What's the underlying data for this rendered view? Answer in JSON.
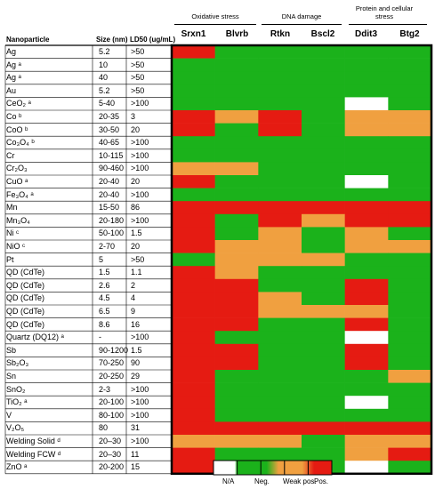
{
  "chart_data": {
    "type": "heatmap",
    "column_groups": [
      {
        "label": "Oxidative stress"
      },
      {
        "label": "DNA damage"
      },
      {
        "label": "Protein and cellular stress"
      }
    ],
    "columns": [
      "Srxn1",
      "Blvrb",
      "Rtkn",
      "Bscl2",
      "Ddit3",
      "Btg2"
    ],
    "table_headers": {
      "nanoparticle": "Nanoparticle",
      "size": "Size (nm)",
      "ld50": "LD50 (ug/mL)"
    },
    "rows": [
      {
        "name": "Ag",
        "size": "5.2",
        "ld50": ">50"
      },
      {
        "name": "Ag ᵃ",
        "size": "10",
        "ld50": ">50"
      },
      {
        "name": "Ag ᵃ",
        "size": "40",
        "ld50": ">50"
      },
      {
        "name": "Au",
        "size": "5.2",
        "ld50": ">50"
      },
      {
        "name": "CeO₂ ᵃ",
        "size": "5-40",
        "ld50": ">100"
      },
      {
        "name": "Co ᵇ",
        "size": "20-35",
        "ld50": "3"
      },
      {
        "name": "CoO ᵇ",
        "size": "30-50",
        "ld50": "20"
      },
      {
        "name": "Co₃O₄ ᵇ",
        "size": "40-65",
        "ld50": ">100"
      },
      {
        "name": "Cr",
        "size": "10-115",
        "ld50": ">100"
      },
      {
        "name": "Cr₂O₃",
        "size": "90-460",
        "ld50": ">100"
      },
      {
        "name": "CuO ᵃ",
        "size": "20-40",
        "ld50": "20"
      },
      {
        "name": "Fe₃O₄ ᵃ",
        "size": "20-40",
        "ld50": ">100"
      },
      {
        "name": "Mn",
        "size": "15-50",
        "ld50": "86"
      },
      {
        "name": "Mn₃O₄",
        "size": "20-180",
        "ld50": ">100"
      },
      {
        "name": "Ni ᶜ",
        "size": "50-100",
        "ld50": "1.5"
      },
      {
        "name": "NiO ᶜ",
        "size": "2-70",
        "ld50": "20"
      },
      {
        "name": "Pt",
        "size": "5",
        "ld50": ">50"
      },
      {
        "name": "QD (CdTe)",
        "size": "1.5",
        "ld50": "1.1"
      },
      {
        "name": "QD (CdTe)",
        "size": "2.6",
        "ld50": "2"
      },
      {
        "name": "QD (CdTe)",
        "size": "4.5",
        "ld50": "4"
      },
      {
        "name": "QD (CdTe)",
        "size": "6.5",
        "ld50": "9"
      },
      {
        "name": "QD (CdTe)",
        "size": "8.6",
        "ld50": "16"
      },
      {
        "name": "Quartz (DQ12) ᵃ",
        "size": "-",
        "ld50": ">100"
      },
      {
        "name": "Sb",
        "size": "90-1200",
        "ld50": "1.5"
      },
      {
        "name": "Sb₂O₃",
        "size": "70-250",
        "ld50": "90"
      },
      {
        "name": "Sn",
        "size": "20-250",
        "ld50": "29"
      },
      {
        "name": "SnO₂",
        "size": "2-3",
        "ld50": ">100"
      },
      {
        "name": "TiO₂ ᵃ",
        "size": "20-100",
        "ld50": ">100"
      },
      {
        "name": "V",
        "size": "80-100",
        "ld50": ">100"
      },
      {
        "name": "V₂O₅",
        "size": "80",
        "ld50": "31"
      },
      {
        "name": "Welding Solid ᵈ",
        "size": "20–30",
        "ld50": ">100"
      },
      {
        "name": "Welding FCW ᵈ",
        "size": "20–30",
        "ld50": "11"
      },
      {
        "name": "ZnO ᵃ",
        "size": "20-200",
        "ld50": "15"
      }
    ],
    "levels": [
      "N/A",
      "Neg.",
      "Weak pos.",
      "Pos."
    ],
    "colors": {
      "N/A": "#ffffff",
      "Neg.": "#1bb21b",
      "Weak pos.": "#f0a040",
      "Pos.": "#e51b12"
    },
    "values": [
      [
        3,
        1,
        1,
        1,
        1,
        1
      ],
      [
        1,
        1,
        1,
        1,
        1,
        1
      ],
      [
        1,
        1,
        1,
        1,
        1,
        1
      ],
      [
        1,
        1,
        1,
        1,
        1,
        1
      ],
      [
        1,
        1,
        1,
        1,
        0,
        1
      ],
      [
        3,
        2,
        3,
        1,
        2,
        2
      ],
      [
        3,
        1,
        3,
        1,
        2,
        2
      ],
      [
        1,
        1,
        1,
        1,
        1,
        1
      ],
      [
        1,
        1,
        1,
        1,
        1,
        1
      ],
      [
        2,
        2,
        1,
        1,
        1,
        1
      ],
      [
        3,
        1,
        1,
        1,
        0,
        1
      ],
      [
        1,
        1,
        1,
        1,
        1,
        1
      ],
      [
        3,
        3,
        3,
        3,
        3,
        3
      ],
      [
        3,
        1,
        3,
        2,
        3,
        3
      ],
      [
        3,
        1,
        2,
        1,
        2,
        1
      ],
      [
        3,
        2,
        2,
        1,
        2,
        2
      ],
      [
        1,
        2,
        2,
        2,
        1,
        1
      ],
      [
        3,
        2,
        1,
        1,
        1,
        1
      ],
      [
        3,
        3,
        1,
        1,
        3,
        1
      ],
      [
        3,
        3,
        2,
        1,
        3,
        1
      ],
      [
        3,
        3,
        2,
        2,
        2,
        1
      ],
      [
        3,
        3,
        1,
        1,
        3,
        1
      ],
      [
        3,
        1,
        1,
        1,
        0,
        1
      ],
      [
        3,
        3,
        1,
        1,
        3,
        1
      ],
      [
        3,
        3,
        1,
        1,
        3,
        1
      ],
      [
        3,
        1,
        1,
        1,
        1,
        2
      ],
      [
        3,
        1,
        1,
        1,
        1,
        1
      ],
      [
        3,
        1,
        1,
        1,
        0,
        1
      ],
      [
        3,
        1,
        1,
        1,
        1,
        1
      ],
      [
        3,
        3,
        3,
        3,
        3,
        3
      ],
      [
        2,
        2,
        2,
        1,
        2,
        2
      ],
      [
        3,
        1,
        1,
        1,
        2,
        3
      ],
      [
        3,
        1,
        1,
        1,
        0,
        1
      ]
    ]
  }
}
